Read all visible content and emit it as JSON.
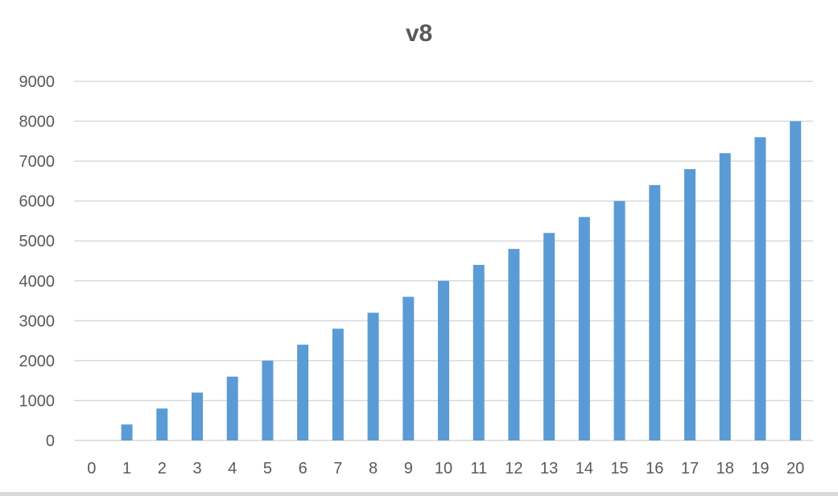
{
  "chart_data": {
    "type": "bar",
    "title": "v8",
    "xlabel": "",
    "ylabel": "",
    "categories": [
      "0",
      "1",
      "2",
      "3",
      "4",
      "5",
      "6",
      "7",
      "8",
      "9",
      "10",
      "11",
      "12",
      "13",
      "14",
      "15",
      "16",
      "17",
      "18",
      "19",
      "20"
    ],
    "values": [
      0,
      400,
      800,
      1200,
      1600,
      2000,
      2400,
      2800,
      3200,
      3600,
      4000,
      4400,
      4800,
      5200,
      5600,
      6000,
      6400,
      6800,
      7200,
      7600,
      8000
    ],
    "ylim": [
      0,
      9000
    ],
    "yticks": [
      "0",
      "1000",
      "2000",
      "3000",
      "4000",
      "5000",
      "6000",
      "7000",
      "8000",
      "9000"
    ],
    "grid": true,
    "legend": "none",
    "colors": {
      "bar": "#5b9bd5",
      "grid": "#d9d9d9",
      "text": "#595959"
    }
  }
}
